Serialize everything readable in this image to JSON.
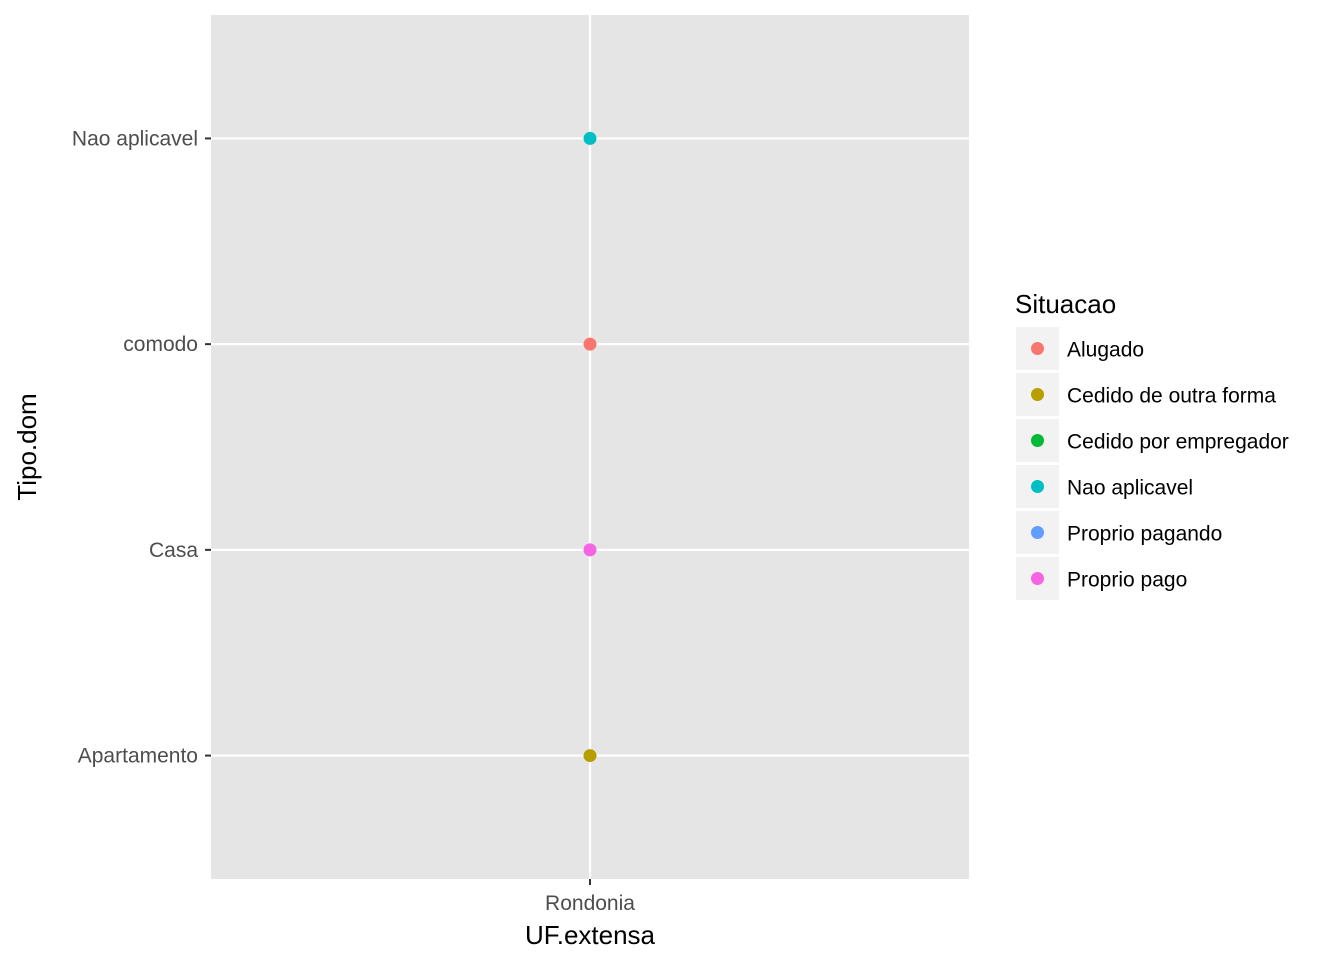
{
  "chart_data": {
    "type": "scatter",
    "x_categories": [
      "Rondonia"
    ],
    "y_categories": [
      "Apartamento",
      "Casa",
      "comodo",
      "Nao aplicavel"
    ],
    "xlabel": "UF.extensa",
    "ylabel": "Tipo.dom",
    "grid": true,
    "legend": {
      "title": "Situacao",
      "position": "right",
      "entries": [
        {
          "name": "Alugado",
          "color": "#F8766D"
        },
        {
          "name": "Cedido de outra forma",
          "color": "#B79F00"
        },
        {
          "name": "Cedido por empregador",
          "color": "#00BA38"
        },
        {
          "name": "Nao aplicavel",
          "color": "#00BFC4"
        },
        {
          "name": "Proprio pagando",
          "color": "#619CFF"
        },
        {
          "name": "Proprio pago",
          "color": "#F564E3"
        }
      ]
    },
    "points": [
      {
        "x": "Rondonia",
        "y": "Apartamento",
        "series": "Cedido de outra forma"
      },
      {
        "x": "Rondonia",
        "y": "Casa",
        "series": "Proprio pago"
      },
      {
        "x": "Rondonia",
        "y": "comodo",
        "series": "Alugado"
      },
      {
        "x": "Rondonia",
        "y": "Nao aplicavel",
        "series": "Nao aplicavel"
      }
    ]
  }
}
